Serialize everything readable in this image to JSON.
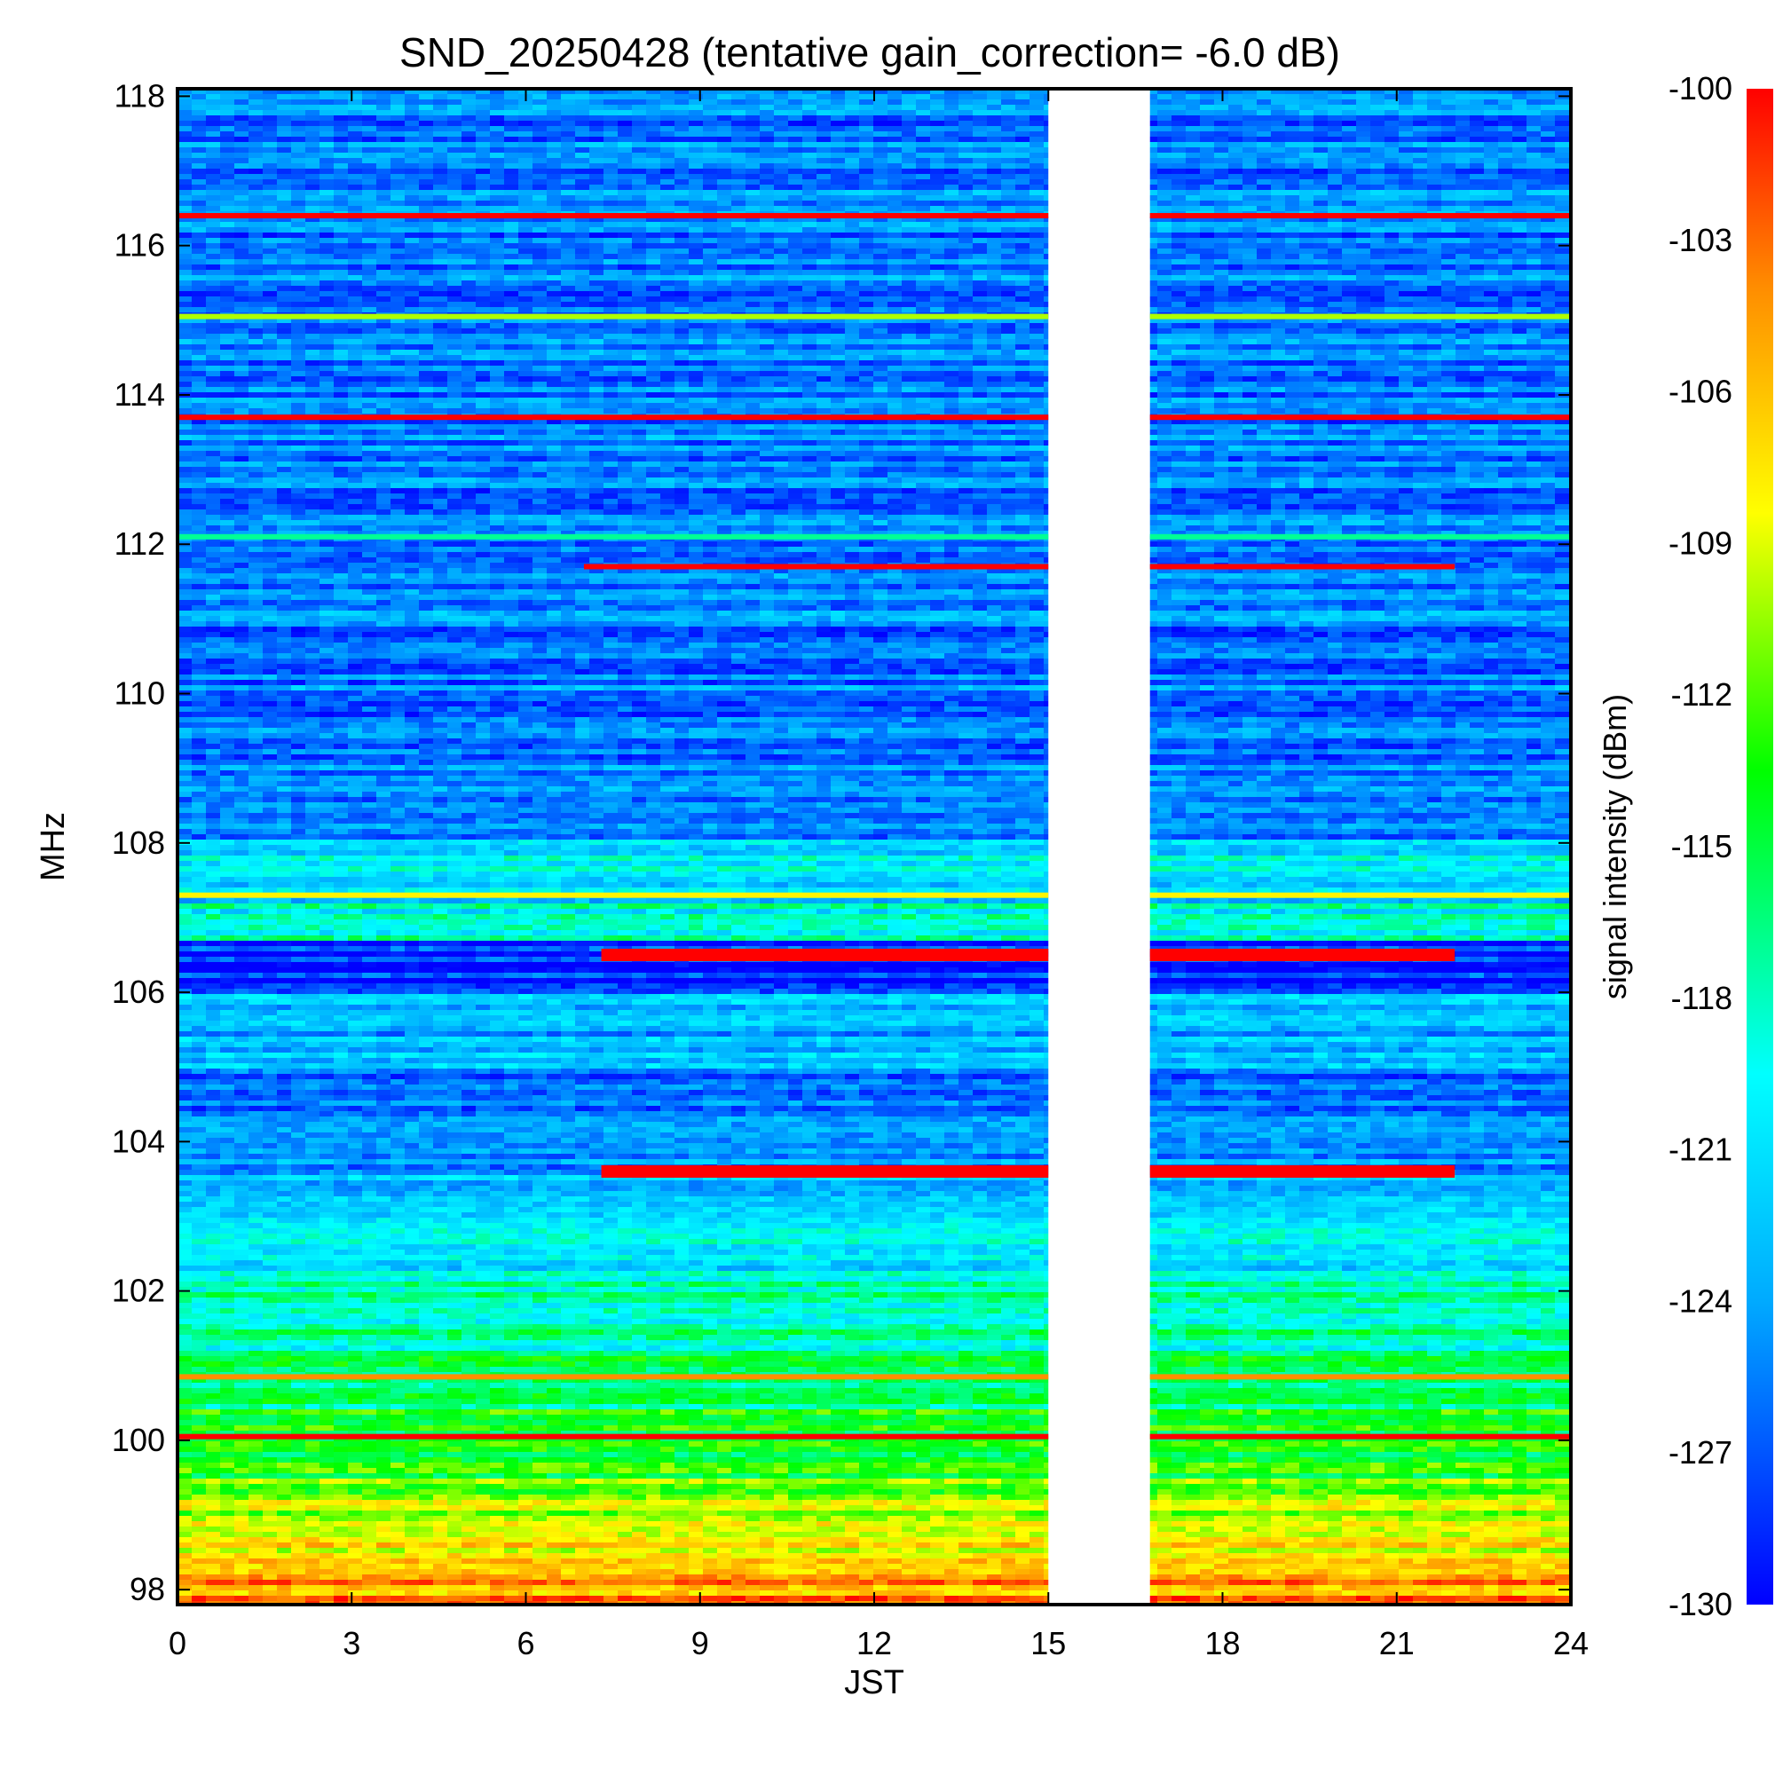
{
  "chart_data": {
    "type": "heatmap",
    "title": "SND_20250428 (tentative gain_correction= -6.0 dB)",
    "xlabel": "JST",
    "ylabel": "MHz",
    "xlim": [
      0,
      24
    ],
    "ylim": [
      97.8,
      118.1
    ],
    "xticks": [
      "0",
      "3",
      "6",
      "9",
      "12",
      "15",
      "18",
      "21",
      "24"
    ],
    "yticks": [
      "98",
      "100",
      "102",
      "104",
      "106",
      "108",
      "110",
      "112",
      "114",
      "116",
      "118"
    ],
    "colorbar": {
      "label": "signal intensity (dBm)",
      "range": [
        -130,
        -100
      ],
      "ticks": [
        "-100",
        "-103",
        "-106",
        "-109",
        "-112",
        "-115",
        "-118",
        "-121",
        "-124",
        "-127",
        "-130"
      ]
    },
    "data_gap_jst": [
      15.0,
      16.75
    ],
    "background_by_band": [
      {
        "mhz": [
          108.05,
          118.1
        ],
        "level_dbm": -125.5
      },
      {
        "mhz": [
          107.2,
          108.05
        ],
        "level_dbm": -121
      },
      {
        "mhz": [
          106.7,
          107.2
        ],
        "level_dbm": -119
      },
      {
        "mhz": [
          106.0,
          106.7
        ],
        "level_dbm": -128.5
      },
      {
        "mhz": [
          105.0,
          106.0
        ],
        "level_dbm": -123.5
      },
      {
        "mhz": [
          104.2,
          105.0
        ],
        "level_dbm": -126
      },
      {
        "mhz": [
          103.6,
          104.2
        ],
        "level_dbm": -125
      },
      {
        "mhz": [
          103.0,
          103.6
        ],
        "level_dbm": -123
      },
      {
        "mhz": [
          102.3,
          103.0
        ],
        "level_dbm": -121
      },
      {
        "mhz": [
          101.2,
          102.3
        ],
        "level_dbm": -117.5
      },
      {
        "mhz": [
          100.4,
          101.2
        ],
        "level_dbm": -116
      },
      {
        "mhz": [
          99.5,
          100.4
        ],
        "level_dbm": -114
      },
      {
        "mhz": [
          98.9,
          99.5
        ],
        "level_dbm": -110.5
      },
      {
        "mhz": [
          98.3,
          98.9
        ],
        "level_dbm": -107.5
      },
      {
        "mhz": [
          97.8,
          98.3
        ],
        "level_dbm": -104.5
      }
    ],
    "strong_signals": [
      {
        "mhz": 116.4,
        "jst": [
          0,
          24
        ],
        "level_dbm": -100
      },
      {
        "mhz": 115.05,
        "jst": [
          0,
          24
        ],
        "level_dbm": -110
      },
      {
        "mhz": 113.7,
        "jst": [
          0,
          24
        ],
        "level_dbm": -100
      },
      {
        "mhz": 112.1,
        "jst": [
          0,
          24
        ],
        "level_dbm": -117
      },
      {
        "mhz": 111.7,
        "jst": [
          7.0,
          22.0
        ],
        "level_dbm": -100
      },
      {
        "mhz": 107.3,
        "jst": [
          0,
          24
        ],
        "level_dbm": -108
      },
      {
        "mhz": 106.5,
        "jst": [
          7.3,
          22.0
        ],
        "level_dbm": -100
      },
      {
        "mhz": 103.6,
        "jst": [
          7.3,
          22.0
        ],
        "level_dbm": -100
      },
      {
        "mhz": 100.85,
        "jst": [
          0,
          24
        ],
        "level_dbm": -104
      },
      {
        "mhz": 100.05,
        "jst": [
          0,
          24
        ],
        "level_dbm": -100
      }
    ]
  }
}
